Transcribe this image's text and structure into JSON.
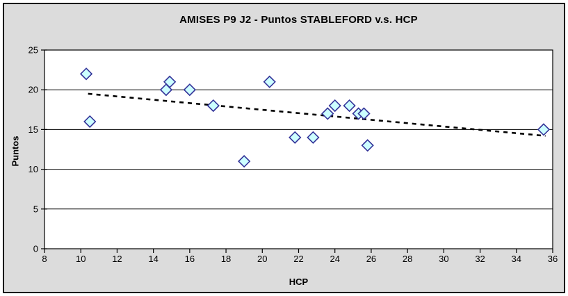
{
  "window": {
    "background": "#FFFFFF",
    "frame_border_color": "#000000",
    "chart_background": "#DCDCDC"
  },
  "chart_data": {
    "type": "scatter",
    "title": "AMISES P9 J2 - Puntos STABLEFORD v.s. HCP",
    "xlabel": "HCP",
    "ylabel": "Puntos",
    "xlim": [
      8,
      36
    ],
    "ylim": [
      0,
      25
    ],
    "x_ticks": [
      8,
      10,
      12,
      14,
      16,
      18,
      20,
      22,
      24,
      26,
      28,
      30,
      32,
      34,
      36
    ],
    "y_ticks": [
      0,
      5,
      10,
      15,
      20,
      25
    ],
    "grid": "horizontal-only",
    "legend": "none",
    "plot_background": "#FFFFFF",
    "gridline_color": "#000000",
    "axis_color": "#000000",
    "marker": {
      "shape": "diamond",
      "fill": "#CCFFFF",
      "stroke": "#333399",
      "half_size": 8
    },
    "points": [
      {
        "x": 10.3,
        "y": 22
      },
      {
        "x": 10.5,
        "y": 16
      },
      {
        "x": 14.7,
        "y": 20
      },
      {
        "x": 14.9,
        "y": 21
      },
      {
        "x": 16.0,
        "y": 20
      },
      {
        "x": 17.3,
        "y": 18
      },
      {
        "x": 19.0,
        "y": 11
      },
      {
        "x": 20.4,
        "y": 21
      },
      {
        "x": 21.8,
        "y": 14
      },
      {
        "x": 22.8,
        "y": 14
      },
      {
        "x": 23.6,
        "y": 17
      },
      {
        "x": 24.0,
        "y": 18
      },
      {
        "x": 24.8,
        "y": 18
      },
      {
        "x": 25.3,
        "y": 17
      },
      {
        "x": 25.6,
        "y": 17
      },
      {
        "x": 25.8,
        "y": 13
      },
      {
        "x": 35.5,
        "y": 15
      }
    ],
    "trendline": {
      "style": "dotted",
      "color": "#000000",
      "x1": 10.4,
      "y1": 19.5,
      "x2": 35.6,
      "y2": 14.2
    }
  }
}
